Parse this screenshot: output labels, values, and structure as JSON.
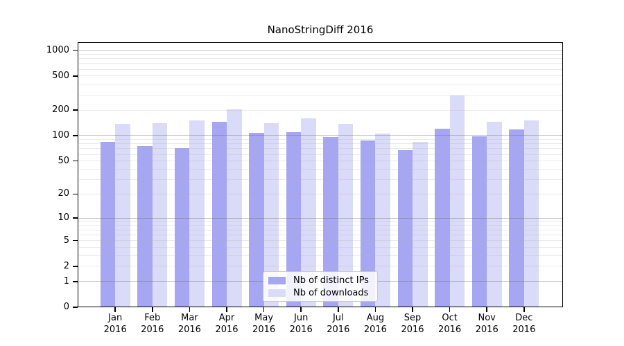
{
  "chart_data": {
    "type": "bar",
    "title": "NanoStringDiff 2016",
    "categories": [
      "Jan",
      "Feb",
      "Mar",
      "Apr",
      "May",
      "Jun",
      "Jul",
      "Aug",
      "Sep",
      "Oct",
      "Nov",
      "Dec"
    ],
    "category_year": "2016",
    "series": [
      {
        "name": "Nb of distinct IPs",
        "color": "#a6a6f2",
        "values": [
          85,
          75,
          71,
          145,
          108,
          110,
          97,
          88,
          67,
          121,
          99,
          119
        ]
      },
      {
        "name": "Nb of downloads",
        "color": "#dadaf9",
        "values": [
          137,
          140,
          151,
          205,
          140,
          160,
          137,
          106,
          85,
          296,
          146,
          152
        ]
      }
    ],
    "ylabel": "",
    "xlabel": "",
    "yscale": "log10(value+1)",
    "ylim": [
      0,
      1000
    ],
    "ytick_values": [
      0,
      1,
      2,
      5,
      10,
      20,
      50,
      100,
      200,
      500,
      1000
    ],
    "ytick_labels": [
      "0",
      "1",
      "2",
      "5",
      "10",
      "20",
      "50",
      "100",
      "200",
      "500",
      "1000"
    ],
    "minor_grid_values": [
      2,
      3,
      4,
      5,
      6,
      7,
      8,
      9,
      20,
      30,
      40,
      50,
      60,
      70,
      80,
      90,
      200,
      300,
      400,
      500,
      600,
      700,
      800,
      900
    ],
    "major_grid_values": [
      1,
      10,
      100,
      1000
    ],
    "grid": "horizontal",
    "legend_position": "bottom-center-inside",
    "colors": {
      "axis": "#000000",
      "background": "#ffffff"
    }
  }
}
